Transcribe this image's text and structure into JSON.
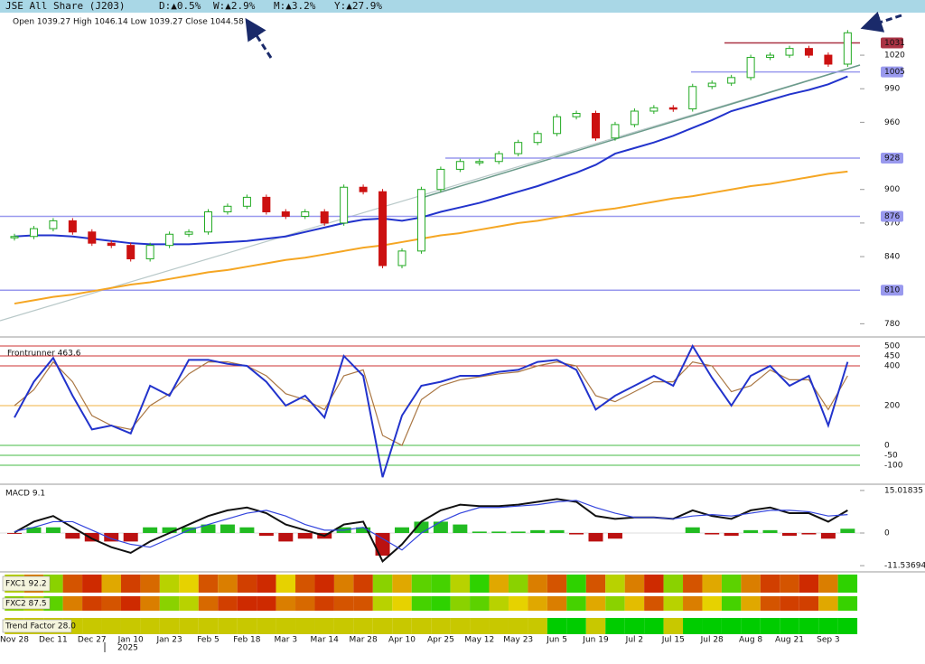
{
  "header": {
    "title": "JSE All Share (J203)",
    "day": "D:▲0.5%",
    "week": "W:▲2.9%",
    "month": "M:▲3.2%",
    "year": "Y:▲27.9%"
  },
  "chart_data": [
    {
      "type": "candlestick",
      "subtitle": "Open 1039.27  High 1046.14  Low 1039.27  Close 1044.58",
      "year_label": "2025",
      "categories": [
        "Nov 28",
        null,
        "Dec 11",
        null,
        "Dec 27",
        null,
        "Jan 10",
        null,
        "Jan 23",
        null,
        "Feb 5",
        null,
        "Feb 18",
        null,
        "Mar 3",
        null,
        "Mar 14",
        null,
        "Mar 28",
        null,
        "Apr 10",
        null,
        "Apr 25",
        null,
        "May 12",
        null,
        "May 23",
        null,
        "Jun 5",
        null,
        "Jun 19",
        null,
        "Jul 2",
        null,
        "Jul 15",
        null,
        "Jul 28",
        null,
        "Aug 8",
        null,
        "Aug 21",
        null,
        "Sep 3",
        null
      ],
      "up_color": "#22aa22",
      "down_color": "#cc1111",
      "series": [
        {
          "color": "#22aa22",
          "values": [
            858,
            865,
            872,
            862,
            852,
            850,
            838,
            850,
            860,
            862,
            880,
            885,
            893,
            880,
            876,
            880,
            870,
            902,
            898,
            832,
            845,
            900,
            918,
            925,
            925,
            932,
            942,
            950,
            965,
            968,
            946,
            958,
            970,
            973,
            972,
            992,
            995,
            1000,
            1018,
            1020,
            1026,
            1020,
            1012,
            1040
          ]
        },
        {
          "color": "#2233cc",
          "values": [
            858,
            859,
            859,
            858,
            856,
            854,
            852,
            851,
            851,
            851,
            852,
            853,
            854,
            856,
            858,
            862,
            866,
            870,
            873,
            874,
            872,
            875,
            880,
            884,
            888,
            893,
            898,
            903,
            909,
            915,
            922,
            932,
            937,
            942,
            948,
            955,
            962,
            970,
            975,
            980,
            985,
            989,
            994,
            1001
          ]
        },
        {
          "color": "#f5a623",
          "values": [
            798,
            801,
            804,
            806,
            809,
            812,
            815,
            817,
            820,
            823,
            826,
            828,
            831,
            834,
            837,
            839,
            842,
            845,
            848,
            850,
            853,
            856,
            859,
            861,
            864,
            867,
            870,
            872,
            875,
            878,
            881,
            883,
            886,
            889,
            892,
            894,
            897,
            900,
            903,
            905,
            908,
            911,
            914,
            916
          ]
        }
      ],
      "levels": [
        {
          "value": 810,
          "color": "#9999ee"
        },
        {
          "value": 876,
          "color": "#9999ee"
        },
        {
          "value": 928,
          "color": "#9999ee"
        },
        {
          "value": 1005,
          "color": "#9999ee"
        },
        {
          "value": 1031,
          "color": "#aa3344"
        }
      ],
      "ylim": [
        769,
        1058
      ],
      "yticks": [
        780,
        840,
        870,
        900,
        960,
        990,
        1020
      ]
    },
    {
      "type": "line",
      "label": "Frontrunner 463.6",
      "series": [
        {
          "color": "#2233cc",
          "values": [
            140,
            320,
            440,
            250,
            80,
            100,
            60,
            300,
            250,
            430,
            430,
            410,
            400,
            320,
            200,
            250,
            140,
            450,
            350,
            -160,
            150,
            300,
            320,
            350,
            350,
            370,
            380,
            420,
            430,
            380,
            180,
            250,
            300,
            350,
            300,
            500,
            340,
            200,
            350,
            400,
            300,
            350,
            100,
            420
          ]
        },
        {
          "color": "#aa7744",
          "values": [
            200,
            280,
            420,
            320,
            150,
            100,
            80,
            200,
            260,
            360,
            420,
            420,
            400,
            350,
            260,
            230,
            180,
            350,
            380,
            50,
            0,
            230,
            300,
            330,
            345,
            360,
            370,
            400,
            420,
            400,
            250,
            220,
            270,
            320,
            320,
            420,
            400,
            270,
            300,
            380,
            330,
            330,
            180,
            350
          ]
        }
      ],
      "ylim": [
        -191,
        541
      ],
      "yticks": [
        500,
        450,
        400,
        200,
        0,
        -50,
        -100
      ],
      "tick_colors": [
        "#cc3333",
        "#cc3333",
        "#cc3333",
        "#f0b040",
        "#44bb44",
        "#44bb44",
        "#44bb44"
      ]
    },
    {
      "type": "macd",
      "label": "MACD 9.1",
      "series": [
        {
          "color": "#111111",
          "values": [
            0.2,
            4,
            6,
            2,
            -2,
            -5,
            -7,
            -3,
            0,
            3,
            6,
            8,
            9,
            7,
            3,
            1,
            -1,
            3,
            4,
            -10,
            -4,
            4,
            8,
            10,
            9.5,
            9.5,
            10,
            11,
            12,
            11,
            6,
            5,
            5.5,
            5.5,
            5,
            8,
            6,
            5,
            8,
            9,
            7,
            7,
            4,
            8
          ]
        },
        {
          "color": "#3344dd",
          "values": [
            0.5,
            2,
            4,
            4,
            1,
            -2,
            -4,
            -5,
            -2,
            1,
            3,
            5,
            7,
            8,
            6,
            3,
            1,
            1,
            2,
            -2,
            -6,
            0,
            4,
            7,
            9,
            9,
            9.5,
            10,
            11,
            11.5,
            9,
            7,
            5.5,
            5.5,
            5,
            6,
            6.5,
            6,
            7,
            8,
            8,
            7.5,
            6,
            6.5
          ]
        }
      ],
      "histogram": [
        -0.3,
        2,
        2,
        -2,
        -3,
        -3,
        -3,
        2,
        2,
        2,
        3,
        3,
        2,
        -1,
        -3,
        -2,
        -2,
        2,
        2,
        -8,
        2,
        4,
        4,
        3,
        0.5,
        0.5,
        0.5,
        1,
        1,
        -0.5,
        -3,
        -2,
        0,
        0,
        0,
        2,
        -0.5,
        -1,
        1,
        1,
        -1,
        -0.5,
        -2,
        1.5
      ],
      "ylim": [
        -13.4,
        16.9
      ],
      "yticks": [
        15.01835,
        0,
        -11.53694
      ]
    },
    {
      "type": "heatmap",
      "label": "FXC1 92.2",
      "values": [
        60,
        30,
        70,
        20,
        10,
        40,
        15,
        25,
        60,
        50,
        20,
        30,
        15,
        10,
        50,
        20,
        10,
        30,
        15,
        70,
        40,
        80,
        85,
        60,
        90,
        40,
        70,
        30,
        20,
        90,
        20,
        60,
        30,
        10,
        70,
        20,
        40,
        80,
        30,
        15,
        20,
        10,
        30,
        90
      ]
    },
    {
      "type": "heatmap",
      "label": "FXC2 87.5",
      "values": [
        70,
        60,
        80,
        30,
        15,
        20,
        10,
        30,
        70,
        60,
        25,
        15,
        10,
        10,
        30,
        25,
        15,
        20,
        20,
        60,
        50,
        85,
        90,
        70,
        80,
        60,
        50,
        40,
        30,
        85,
        40,
        70,
        45,
        20,
        60,
        30,
        50,
        85,
        40,
        20,
        15,
        15,
        40,
        88
      ]
    },
    {
      "type": "strip",
      "label": "Trend Factor 28.0",
      "colors": [
        "#c8c800",
        "#c8c800",
        "#c8c800",
        "#c8c800",
        "#c8c800",
        "#c8c800",
        "#c8c800",
        "#c8c800",
        "#c8c800",
        "#c8c800",
        "#c8c800",
        "#c8c800",
        "#c8c800",
        "#c8c800",
        "#c8c800",
        "#c8c800",
        "#c8c800",
        "#c8c800",
        "#c8c800",
        "#c8c800",
        "#c8c800",
        "#c8c800",
        "#c8c800",
        "#c8c800",
        "#c8c800",
        "#c8c800",
        "#c8c800",
        "#c8c800",
        "#00cc00",
        "#00cc00",
        "#c8c800",
        "#00cc00",
        "#00cc00",
        "#00cc00",
        "#c8c800",
        "#00cc00",
        "#00cc00",
        "#00cc00",
        "#00cc00",
        "#00cc00",
        "#00cc00",
        "#00cc00",
        "#00cc00",
        "#00cc00"
      ]
    }
  ]
}
